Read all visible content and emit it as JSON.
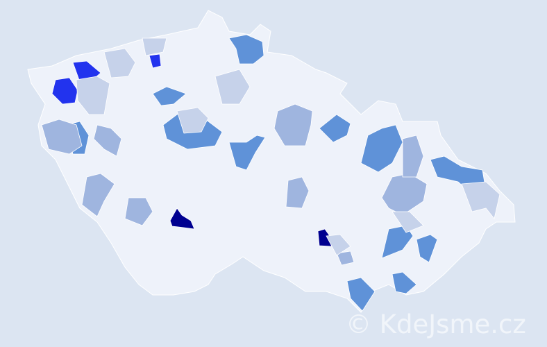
{
  "map": {
    "background_color": "#dce5f2",
    "base_region_color": "#eef2fa",
    "border_color": "#ffffff",
    "scale_colors": [
      "#eef2fa",
      "#c6d2ea",
      "#9fb5df",
      "#5f92d8",
      "#2233ee",
      "#000090"
    ],
    "highlighted_regions": [
      {
        "level": 5
      },
      {
        "level": 5
      },
      {
        "level": 4
      },
      {
        "level": 4
      },
      {
        "level": 4
      },
      {
        "level": 3
      },
      {
        "level": 3
      },
      {
        "level": 3
      },
      {
        "level": 3
      },
      {
        "level": 3
      },
      {
        "level": 3
      },
      {
        "level": 3
      },
      {
        "level": 3
      },
      {
        "level": 3
      },
      {
        "level": 3
      },
      {
        "level": 3
      },
      {
        "level": 3
      },
      {
        "level": 2
      },
      {
        "level": 2
      },
      {
        "level": 2
      },
      {
        "level": 2
      },
      {
        "level": 2
      },
      {
        "level": 2
      },
      {
        "level": 2
      },
      {
        "level": 2
      },
      {
        "level": 2
      },
      {
        "level": 1
      },
      {
        "level": 1
      },
      {
        "level": 1
      },
      {
        "level": 1
      },
      {
        "level": 1
      }
    ]
  },
  "watermark": "© KdeJsme.cz"
}
